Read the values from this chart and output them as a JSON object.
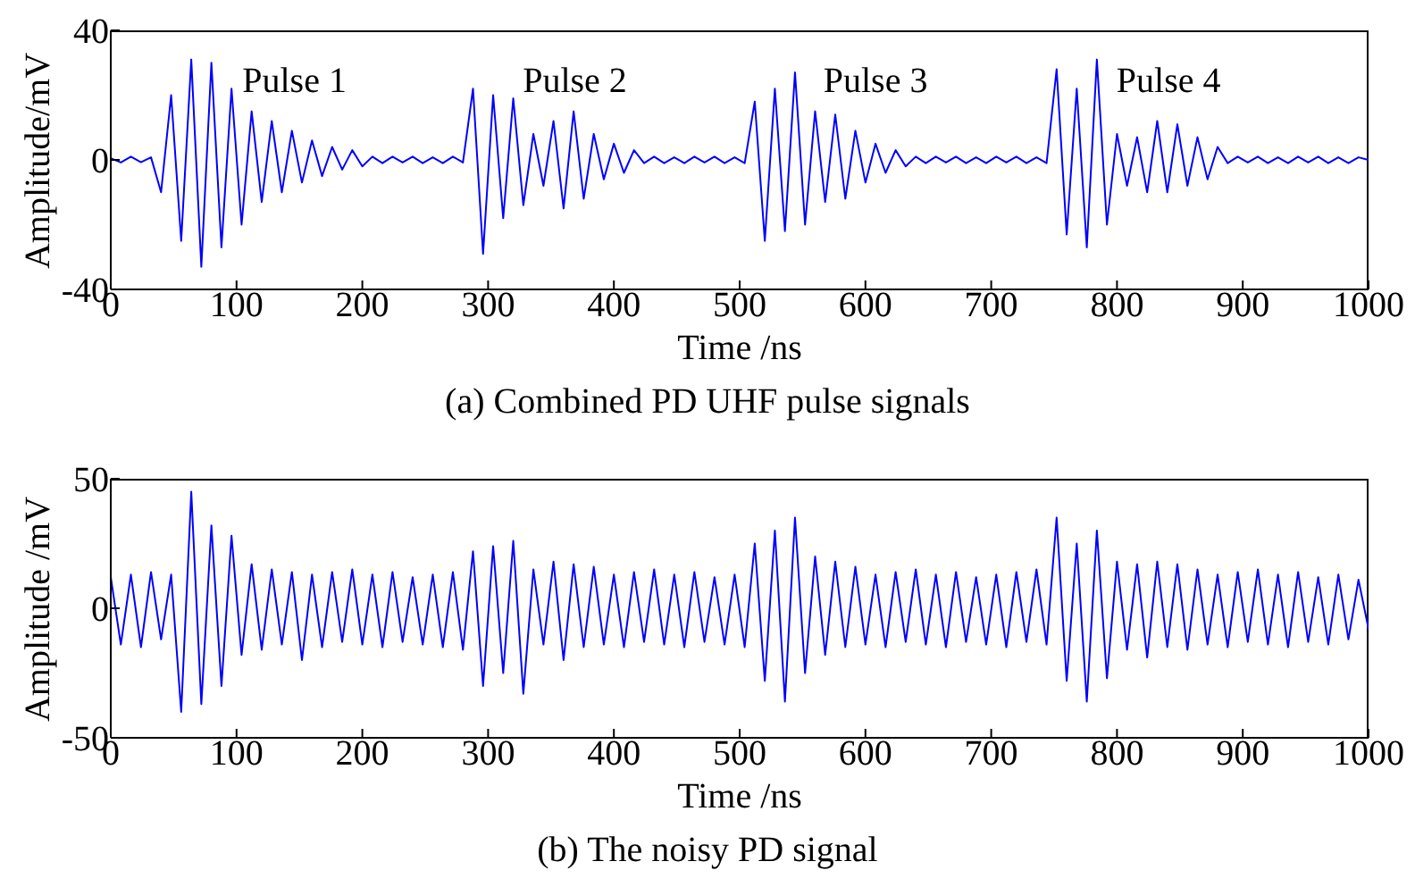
{
  "chart_data": [
    {
      "type": "line",
      "title": "(a) Combined PD UHF pulse signals",
      "xlabel": "Time /ns",
      "ylabel": "Amplitude/mV",
      "xlim": [
        0,
        1000
      ],
      "xticks": [
        0,
        100,
        200,
        300,
        400,
        500,
        600,
        700,
        800,
        900,
        1000
      ],
      "ylim": [
        -40,
        40
      ],
      "yticks": [
        -40,
        0,
        40
      ],
      "grid": false,
      "marker": "none",
      "line_style": "solid",
      "annotations": [
        "Pulse 1",
        "Pulse 2",
        "Pulse 3",
        "Pulse 4"
      ],
      "x": [
        0,
        8,
        16,
        24,
        32,
        40,
        48,
        56,
        64,
        72,
        80,
        88,
        96,
        104,
        112,
        120,
        128,
        136,
        144,
        152,
        160,
        168,
        176,
        184,
        192,
        200,
        208,
        216,
        224,
        232,
        240,
        248,
        256,
        264,
        272,
        280,
        288,
        296,
        304,
        312,
        320,
        328,
        336,
        344,
        352,
        360,
        368,
        376,
        384,
        392,
        400,
        408,
        416,
        424,
        432,
        440,
        448,
        456,
        464,
        472,
        480,
        488,
        496,
        504,
        512,
        520,
        528,
        536,
        544,
        552,
        560,
        568,
        576,
        584,
        592,
        600,
        608,
        616,
        624,
        632,
        640,
        648,
        656,
        664,
        672,
        680,
        688,
        696,
        704,
        712,
        720,
        728,
        736,
        744,
        752,
        760,
        768,
        776,
        784,
        792,
        800,
        808,
        816,
        824,
        832,
        840,
        848,
        856,
        864,
        872,
        880,
        888,
        896,
        904,
        912,
        920,
        928,
        936,
        944,
        952,
        960,
        968,
        976,
        984,
        992,
        1000
      ],
      "series": [
        {
          "color": "#0000ff",
          "values": [
            0.5,
            -0.8,
            1,
            -0.7,
            0.8,
            -10,
            20,
            -25,
            31,
            -33,
            30,
            -27,
            22,
            -20,
            15,
            -13,
            12,
            -10,
            9,
            -7,
            6,
            -5,
            4,
            -3,
            3,
            -2,
            1,
            -1,
            1,
            -0.8,
            1,
            -1,
            0.8,
            -1,
            1,
            -0.8,
            22,
            -29,
            20,
            -18,
            19,
            -14,
            8,
            -8,
            12,
            -15,
            15,
            -12,
            8,
            -6,
            5,
            -4,
            3,
            -1,
            1,
            -1,
            0.8,
            -1,
            1,
            -0.8,
            1,
            -1,
            0.8,
            -1,
            18,
            -25,
            22,
            -22,
            27,
            -20,
            15,
            -13,
            14,
            -12,
            9,
            -7,
            5,
            -4,
            3,
            -2,
            1,
            -1,
            1,
            -0.8,
            1,
            -1,
            0.8,
            -1,
            1,
            -0.8,
            1,
            -1,
            0.8,
            -1,
            28,
            -23,
            22,
            -27,
            31,
            -20,
            8,
            -8,
            7,
            -10,
            12,
            -10,
            11,
            -8,
            7,
            -6,
            4,
            -1,
            1,
            -0.8,
            1,
            -1,
            0.8,
            -1,
            1,
            -0.8,
            1,
            -1,
            0.8,
            -1,
            0.8,
            0
          ]
        }
      ]
    },
    {
      "type": "line",
      "title": "(b) The noisy PD signal",
      "xlabel": "Time /ns",
      "ylabel": "Amplitude /mV",
      "xlim": [
        0,
        1000
      ],
      "xticks": [
        0,
        100,
        200,
        300,
        400,
        500,
        600,
        700,
        800,
        900,
        1000
      ],
      "ylim": [
        -50,
        50
      ],
      "yticks": [
        -50,
        0,
        50
      ],
      "grid": false,
      "marker": "none",
      "line_style": "solid",
      "x": [
        0,
        8,
        16,
        24,
        32,
        40,
        48,
        56,
        64,
        72,
        80,
        88,
        96,
        104,
        112,
        120,
        128,
        136,
        144,
        152,
        160,
        168,
        176,
        184,
        192,
        200,
        208,
        216,
        224,
        232,
        240,
        248,
        256,
        264,
        272,
        280,
        288,
        296,
        304,
        312,
        320,
        328,
        336,
        344,
        352,
        360,
        368,
        376,
        384,
        392,
        400,
        408,
        416,
        424,
        432,
        440,
        448,
        456,
        464,
        472,
        480,
        488,
        496,
        504,
        512,
        520,
        528,
        536,
        544,
        552,
        560,
        568,
        576,
        584,
        592,
        600,
        608,
        616,
        624,
        632,
        640,
        648,
        656,
        664,
        672,
        680,
        688,
        696,
        704,
        712,
        720,
        728,
        736,
        744,
        752,
        760,
        768,
        776,
        784,
        792,
        800,
        808,
        816,
        824,
        832,
        840,
        848,
        856,
        864,
        872,
        880,
        888,
        896,
        904,
        912,
        920,
        928,
        936,
        944,
        952,
        960,
        968,
        976,
        984,
        992,
        1000
      ],
      "series": [
        {
          "color": "#0000ff",
          "values": [
            12,
            -14,
            13,
            -15,
            14,
            -12,
            13,
            -40,
            45,
            -37,
            32,
            -30,
            28,
            -18,
            17,
            -16,
            15,
            -14,
            14,
            -20,
            13,
            -15,
            14,
            -13,
            15,
            -14,
            13,
            -15,
            14,
            -13,
            12,
            -14,
            13,
            -15,
            14,
            -16,
            22,
            -30,
            24,
            -25,
            26,
            -33,
            15,
            -14,
            18,
            -20,
            17,
            -15,
            16,
            -14,
            13,
            -15,
            14,
            -13,
            15,
            -14,
            13,
            -15,
            14,
            -13,
            12,
            -14,
            13,
            -15,
            25,
            -28,
            30,
            -36,
            35,
            -25,
            20,
            -18,
            18,
            -15,
            16,
            -14,
            13,
            -15,
            14,
            -13,
            15,
            -14,
            13,
            -15,
            14,
            -13,
            12,
            -14,
            13,
            -15,
            14,
            -13,
            15,
            -14,
            35,
            -28,
            25,
            -36,
            30,
            -27,
            18,
            -16,
            17,
            -19,
            18,
            -15,
            17,
            -16,
            15,
            -14,
            13,
            -15,
            14,
            -13,
            15,
            -14,
            13,
            -15,
            14,
            -13,
            12,
            -14,
            13,
            -12,
            11,
            -8
          ]
        }
      ]
    }
  ]
}
